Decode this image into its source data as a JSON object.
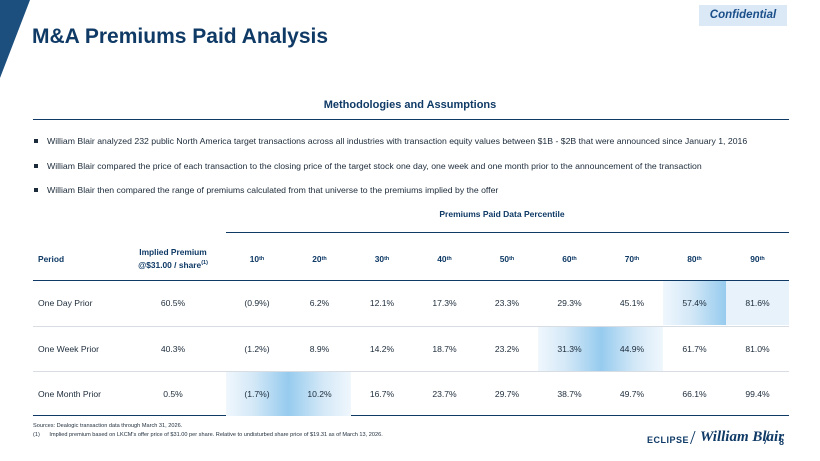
{
  "confidential": "Confidential",
  "title": "M&A Premiums Paid Analysis",
  "methodology": {
    "heading": "Methodologies and Assumptions",
    "bullets": [
      "William Blair analyzed 232 public North America target transactions across all industries with transaction equity values between $1B - $2B that were announced since January 1, 2016",
      "William Blair compared the price of each transaction to the closing price of the target stock one day, one week and one month prior to the announcement of the transaction",
      "William Blair then compared the range of premiums calculated from that universe to the premiums implied by the offer"
    ]
  },
  "table": {
    "group_header": "Premiums Paid Data Percentile",
    "col_period": "Period",
    "col_implied_line1": "Implied Premium",
    "col_implied_line2": "@$31.00 / share",
    "col_implied_note": "(1)",
    "percentiles": [
      {
        "num": "10",
        "sup": "th"
      },
      {
        "num": "20",
        "sup": "th"
      },
      {
        "num": "30",
        "sup": "th"
      },
      {
        "num": "40",
        "sup": "th"
      },
      {
        "num": "50",
        "sup": "th"
      },
      {
        "num": "60",
        "sup": "th"
      },
      {
        "num": "70",
        "sup": "th"
      },
      {
        "num": "80",
        "sup": "th"
      },
      {
        "num": "90",
        "sup": "th"
      }
    ],
    "rows": [
      {
        "period": "One Day Prior",
        "implied": "60.5%",
        "values": [
          "(0.9%)",
          "6.2%",
          "12.1%",
          "17.3%",
          "23.3%",
          "29.3%",
          "45.1%",
          "57.4%",
          "81.6%"
        ]
      },
      {
        "period": "One Week Prior",
        "implied": "40.3%",
        "values": [
          "(1.2%)",
          "8.9%",
          "14.2%",
          "18.7%",
          "23.2%",
          "31.3%",
          "44.9%",
          "61.7%",
          "81.0%"
        ]
      },
      {
        "period": "One Month Prior",
        "implied": "0.5%",
        "values": [
          "(1.7%)",
          "10.2%",
          "16.7%",
          "23.7%",
          "29.7%",
          "38.7%",
          "49.7%",
          "66.1%",
          "99.4%"
        ]
      }
    ]
  },
  "footnotes": {
    "sources": "Sources: Dealogic transaction data through March 31, 2026.",
    "note_num": "(1)",
    "note_text": "Implied premium based on LKCM's offer price of $31.00 per share. Relative to undisturbed share price of $19.31 as of March 13, 2026."
  },
  "footer": {
    "eclipse": "ECLIPSE",
    "wb": "William Blair",
    "page": "8"
  },
  "colors": {
    "navy": "#0f3a66",
    "highlight_light": "#f0f7fd",
    "highlight_mid": "#96cbee",
    "confidential_bg": "#dbe9f6"
  }
}
